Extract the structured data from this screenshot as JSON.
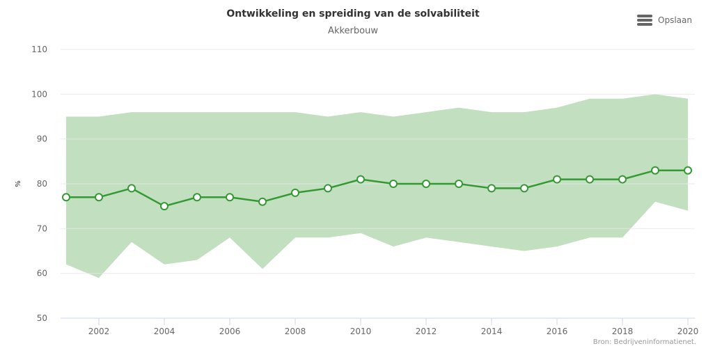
{
  "chart_data": {
    "type": "line",
    "title": "Ontwikkeling en spreiding van de solvabiliteit",
    "subtitle": "Akkerbouw",
    "ylabel": "%",
    "xlabel": "",
    "ylim": [
      50,
      110
    ],
    "yticks": [
      50,
      60,
      70,
      80,
      90,
      100,
      110
    ],
    "xlim": [
      2001,
      2020
    ],
    "xticks": [
      2002,
      2004,
      2006,
      2008,
      2010,
      2012,
      2014,
      2016,
      2018,
      2020
    ],
    "grid": true,
    "x": [
      2001,
      2002,
      2003,
      2004,
      2005,
      2006,
      2007,
      2008,
      2009,
      2010,
      2011,
      2012,
      2013,
      2014,
      2015,
      2016,
      2017,
      2018,
      2019,
      2020
    ],
    "series": [
      {
        "type": "line",
        "values": [
          77,
          77,
          79,
          75,
          77,
          77,
          76,
          78,
          79,
          81,
          80,
          80,
          80,
          79,
          79,
          81,
          81,
          81,
          83,
          83
        ]
      },
      {
        "type": "arearange",
        "low": [
          62,
          59,
          67,
          62,
          63,
          68,
          61,
          68,
          68,
          69,
          66,
          68,
          67,
          66,
          65,
          66,
          68,
          68,
          76,
          74
        ],
        "high": [
          95,
          95,
          96,
          96,
          96,
          96,
          96,
          96,
          95,
          96,
          95,
          96,
          97,
          96,
          96,
          97,
          99,
          99,
          100,
          99
        ]
      }
    ],
    "colors": {
      "line": "#339933",
      "band": "#c2dfc0",
      "marker_fill": "#ffffff"
    },
    "credits": "Bron: Bedrijveninformatienet."
  },
  "menu": {
    "save_label": "Opslaan",
    "icon": "hamburger-menu-icon"
  }
}
